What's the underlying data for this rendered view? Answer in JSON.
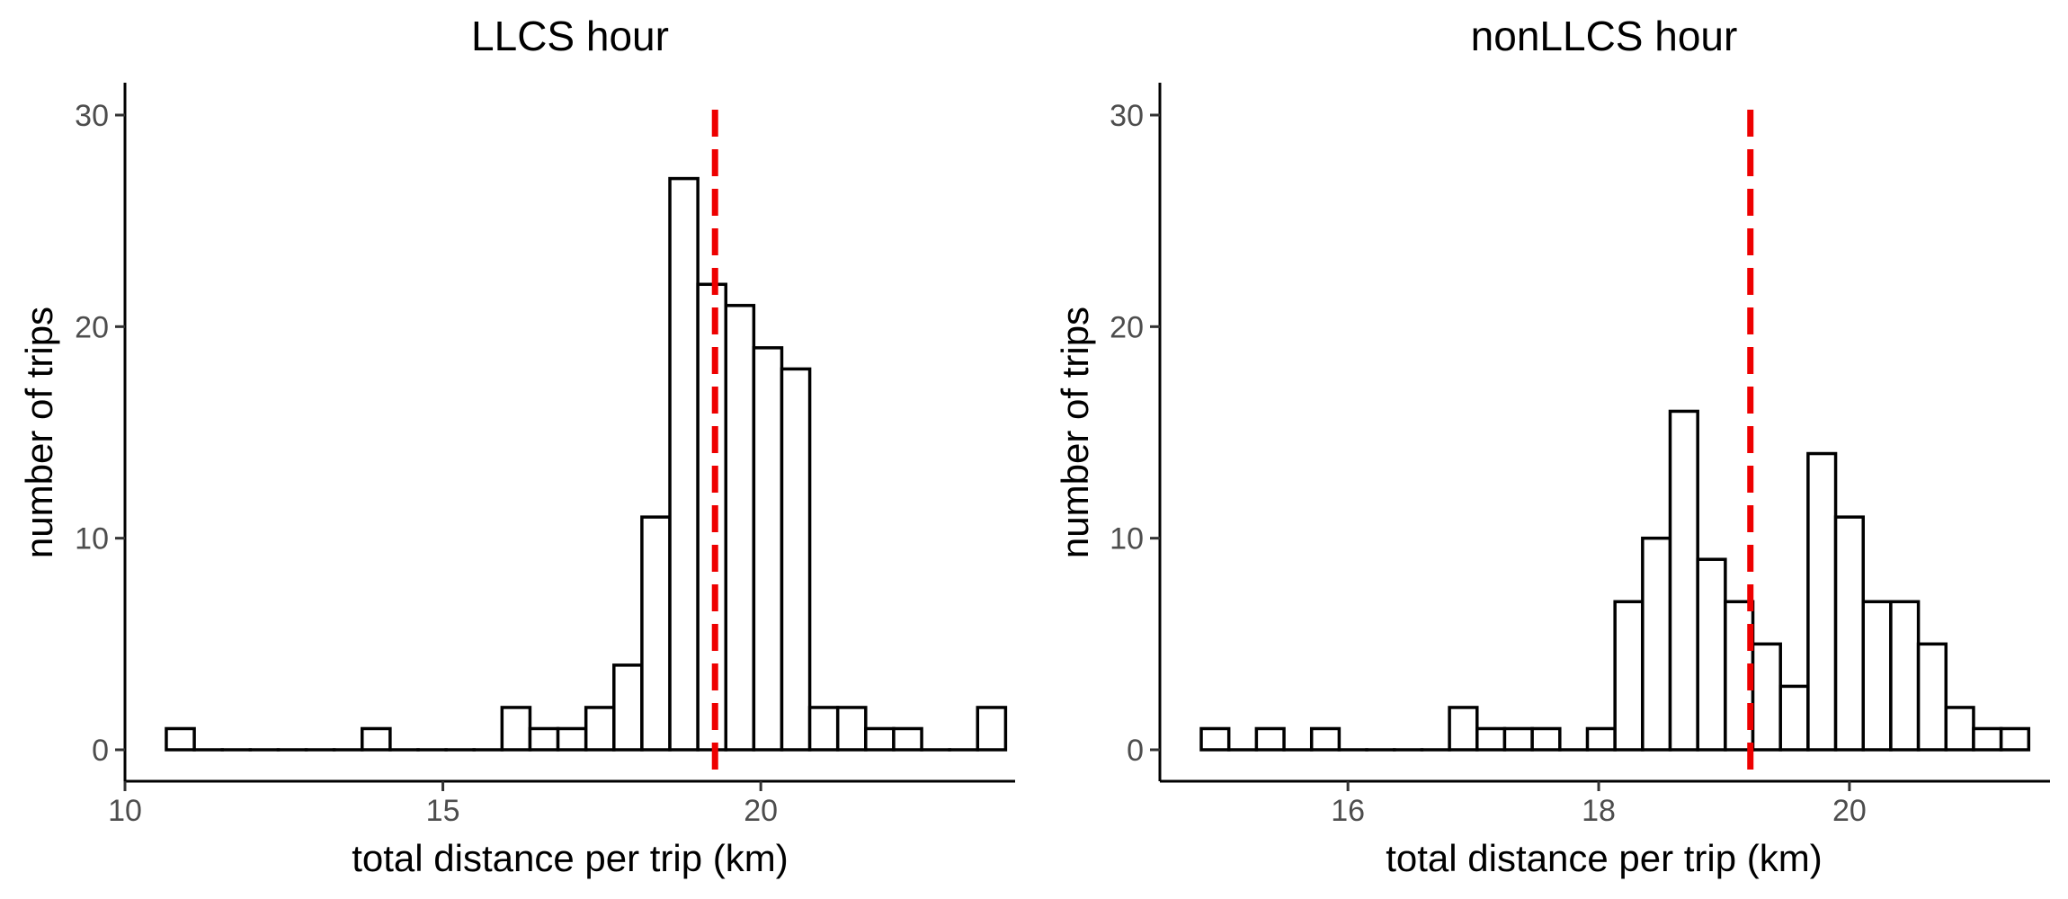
{
  "chart_data": [
    {
      "type": "bar",
      "chart_kind": "histogram",
      "title": "LLCS hour",
      "xlabel": "total distance per trip (km)",
      "ylabel": "number of trips",
      "xlim": [
        10,
        24
      ],
      "ylim": [
        0,
        30
      ],
      "xticks": [
        10,
        15,
        20
      ],
      "yticks": [
        0,
        10,
        20,
        30
      ],
      "bin_width": 0.44,
      "bins": [
        {
          "start": 10.65,
          "count": 1
        },
        {
          "start": 11.09,
          "count": 0
        },
        {
          "start": 11.53,
          "count": 0
        },
        {
          "start": 11.97,
          "count": 0
        },
        {
          "start": 12.41,
          "count": 0
        },
        {
          "start": 12.85,
          "count": 0
        },
        {
          "start": 13.29,
          "count": 0
        },
        {
          "start": 13.73,
          "count": 1
        },
        {
          "start": 14.17,
          "count": 0
        },
        {
          "start": 14.61,
          "count": 0
        },
        {
          "start": 15.05,
          "count": 0
        },
        {
          "start": 15.49,
          "count": 0
        },
        {
          "start": 15.93,
          "count": 2
        },
        {
          "start": 16.37,
          "count": 1
        },
        {
          "start": 16.81,
          "count": 1
        },
        {
          "start": 17.25,
          "count": 2
        },
        {
          "start": 17.69,
          "count": 4
        },
        {
          "start": 18.13,
          "count": 11
        },
        {
          "start": 18.57,
          "count": 27
        },
        {
          "start": 19.01,
          "count": 22
        },
        {
          "start": 19.45,
          "count": 21
        },
        {
          "start": 19.89,
          "count": 19
        },
        {
          "start": 20.33,
          "count": 18
        },
        {
          "start": 20.77,
          "count": 2
        },
        {
          "start": 21.21,
          "count": 2
        },
        {
          "start": 21.65,
          "count": 1
        },
        {
          "start": 22.09,
          "count": 1
        },
        {
          "start": 22.53,
          "count": 0
        },
        {
          "start": 22.97,
          "count": 0
        },
        {
          "start": 23.41,
          "count": 2
        }
      ],
      "mean_line": {
        "x": 19.28,
        "color": "#ee0000",
        "style": "dashed"
      }
    },
    {
      "type": "bar",
      "chart_kind": "histogram",
      "title": "nonLLCS hour",
      "xlabel": "total distance per trip (km)",
      "ylabel": "number of trips",
      "xlim": [
        14.5,
        21.6
      ],
      "ylim": [
        0,
        30
      ],
      "xticks": [
        16,
        18,
        20
      ],
      "yticks": [
        0,
        10,
        20,
        30
      ],
      "bin_width": 0.22,
      "bins": [
        {
          "start": 14.83,
          "count": 1
        },
        {
          "start": 15.05,
          "count": 0
        },
        {
          "start": 15.27,
          "count": 1
        },
        {
          "start": 15.49,
          "count": 0
        },
        {
          "start": 15.71,
          "count": 1
        },
        {
          "start": 15.93,
          "count": 0
        },
        {
          "start": 16.15,
          "count": 0
        },
        {
          "start": 16.37,
          "count": 0
        },
        {
          "start": 16.59,
          "count": 0
        },
        {
          "start": 16.81,
          "count": 2
        },
        {
          "start": 17.03,
          "count": 1
        },
        {
          "start": 17.25,
          "count": 1
        },
        {
          "start": 17.47,
          "count": 1
        },
        {
          "start": 17.69,
          "count": 0
        },
        {
          "start": 17.91,
          "count": 1
        },
        {
          "start": 18.13,
          "count": 7
        },
        {
          "start": 18.35,
          "count": 10
        },
        {
          "start": 18.57,
          "count": 16
        },
        {
          "start": 18.79,
          "count": 9
        },
        {
          "start": 19.01,
          "count": 7
        },
        {
          "start": 19.23,
          "count": 5
        },
        {
          "start": 19.45,
          "count": 3
        },
        {
          "start": 19.67,
          "count": 14
        },
        {
          "start": 19.89,
          "count": 11
        },
        {
          "start": 20.11,
          "count": 7
        },
        {
          "start": 20.33,
          "count": 7
        },
        {
          "start": 20.55,
          "count": 5
        },
        {
          "start": 20.77,
          "count": 2
        },
        {
          "start": 20.99,
          "count": 1
        },
        {
          "start": 21.21,
          "count": 1
        }
      ],
      "mean_line": {
        "x": 19.21,
        "color": "#ee0000",
        "style": "dashed"
      }
    }
  ]
}
